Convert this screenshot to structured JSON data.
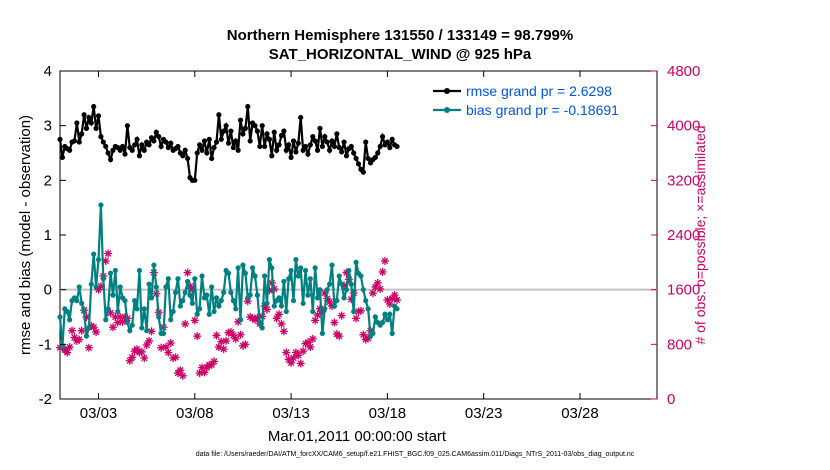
{
  "chart_data": {
    "type": "line",
    "title": "Northern Hemisphere 131550 / 133149 = 98.799%",
    "subtitle": "SAT_HORIZONTAL_WIND @ 925 hPa",
    "xlabel": "Mar.01,2011 00:00:00 start",
    "ylabel_left": "rmse and bias (model - observation)",
    "ylabel_right": "# of obs: o=possible; ×=assimilated",
    "ylim_left": [
      -2,
      4
    ],
    "ylim_right": [
      0,
      4800
    ],
    "x_tick_labels": [
      "03/03",
      "03/08",
      "03/13",
      "03/18",
      "03/23",
      "03/28"
    ],
    "x_tick_days": [
      3,
      8,
      13,
      18,
      23,
      28
    ],
    "xlim_days": [
      1,
      32
    ],
    "y_left_ticks": [
      "-2",
      "-1",
      "0",
      "1",
      "2",
      "3",
      "4"
    ],
    "y_right_ticks": [
      "0",
      "800",
      "1600",
      "2400",
      "3200",
      "4000",
      "4800"
    ],
    "footer": "data file: /Users/raeder/DAI/ATM_forcXX/CAM6_setup/f.e21.FHIST_BGC.f09_025.CAM6assim.011/Diags_NTrS_2011-03/obs_diag_output.nc",
    "legend": [
      {
        "label": "rmse grand pr = 2.6298",
        "color": "#000000"
      },
      {
        "label": "bias grand pr = -0.18691",
        "color": "#008080"
      }
    ],
    "series": [
      {
        "name": "rmse",
        "color": "#000000",
        "step_days": 0.125,
        "values": [
          2.75,
          2.42,
          2.62,
          2.58,
          2.55,
          2.7,
          2.72,
          3.05,
          2.7,
          2.85,
          3.2,
          2.95,
          3.15,
          3.05,
          3.35,
          2.95,
          3.18,
          2.8,
          2.7,
          2.62,
          2.5,
          2.38,
          2.55,
          2.62,
          2.6,
          2.55,
          2.62,
          2.48,
          3.0,
          2.6,
          2.55,
          2.65,
          2.75,
          2.45,
          2.65,
          2.55,
          2.7,
          2.65,
          2.78,
          2.72,
          2.88,
          2.8,
          2.62,
          2.75,
          2.7,
          2.6,
          2.68,
          2.55,
          2.58,
          2.62,
          2.5,
          2.45,
          2.55,
          2.4,
          2.05,
          2.0,
          2.0,
          2.5,
          2.65,
          2.55,
          2.72,
          2.5,
          2.75,
          2.4,
          2.6,
          2.7,
          3.2,
          2.75,
          2.9,
          3.0,
          2.68,
          2.9,
          2.6,
          2.72,
          2.55,
          3.1,
          2.85,
          2.95,
          3.35,
          2.72,
          3.05,
          3.0,
          2.9,
          2.62,
          3.0,
          2.62,
          2.85,
          2.75,
          2.45,
          2.88,
          2.55,
          2.65,
          2.82,
          2.9,
          2.55,
          2.65,
          2.42,
          2.72,
          2.52,
          2.68,
          3.15,
          2.55,
          2.62,
          2.48,
          2.65,
          2.8,
          2.72,
          2.55,
          2.95,
          2.62,
          2.8,
          2.7,
          2.55,
          2.72,
          2.62,
          2.85,
          2.6,
          2.52,
          2.7,
          2.45,
          2.58,
          2.62,
          2.5,
          2.4,
          2.3,
          2.2,
          2.15,
          2.7,
          2.4,
          2.32,
          2.38,
          2.42,
          2.5,
          2.62,
          2.8,
          2.65,
          2.7,
          2.6,
          2.75,
          2.65,
          2.62
        ]
      },
      {
        "name": "bias",
        "color": "#008080",
        "step_days": 0.125,
        "values": [
          -0.5,
          -1.05,
          -0.35,
          -0.4,
          -0.55,
          -0.2,
          -0.15,
          -0.2,
          0.05,
          -0.25,
          -0.4,
          -0.85,
          -0.7,
          0.1,
          0.65,
          0.05,
          0.55,
          1.55,
          0.2,
          -0.55,
          -0.35,
          0.3,
          -0.1,
          0.35,
          -0.4,
          0.05,
          -0.15,
          -0.2,
          -0.6,
          -0.75,
          -0.65,
          -0.2,
          -0.35,
          0.35,
          -0.7,
          -0.35,
          -0.75,
          0.1,
          -0.15,
          0.45,
          0.05,
          -0.5,
          -0.8,
          -0.8,
          0.05,
          0.2,
          -0.55,
          -0.4,
          -0.05,
          0.2,
          -0.3,
          -0.2,
          -0.05,
          0.15,
          -0.1,
          -0.25,
          0.2,
          -0.45,
          -0.35,
          0.25,
          -0.15,
          -0.1,
          -0.45,
          0.05,
          -0.4,
          -0.15,
          -0.3,
          -0.2,
          -0.05,
          0.35,
          0.3,
          -0.05,
          -0.2,
          -0.35,
          0.4,
          -0.55,
          0.45,
          0.3,
          -0.15,
          -0.1,
          0.4,
          0.25,
          -0.1,
          -0.6,
          -0.7,
          0.25,
          -0.25,
          0.55,
          0.4,
          -0.3,
          -0.2,
          -0.15,
          -0.3,
          0.15,
          -0.4,
          0.2,
          0.35,
          -0.2,
          0.55,
          0.25,
          0.4,
          -0.25,
          0.35,
          -0.1,
          0.2,
          -0.4,
          0.4,
          -0.15,
          0.0,
          -0.8,
          -0.35,
          0.0,
          0.1,
          0.45,
          -0.3,
          -0.2,
          0.25,
          0.1,
          -0.15,
          0.0,
          0.35,
          0.1,
          -0.4,
          0.5,
          0.3,
          0.25,
          0.0,
          -0.2,
          -0.35,
          -0.85,
          -0.8,
          -0.5,
          -0.6,
          -0.65,
          -0.6,
          -0.45,
          -0.55,
          -0.45,
          -0.8,
          -0.3,
          -0.35
        ]
      },
      {
        "name": "observations",
        "color": "#cc0066",
        "step_days": 0.125,
        "values": [
          750,
          760,
          720,
          680,
          760,
          1000,
          900,
          850,
          870,
          1000,
          1300,
          1200,
          750,
          1070,
          1050,
          980,
          1600,
          1650,
          1800,
          2020,
          2130,
          1260,
          1050,
          1200,
          1120,
          1200,
          1130,
          1200,
          1180,
          560,
          610,
          700,
          730,
          680,
          690,
          600,
          790,
          850,
          990,
          1850,
          1540,
          1270,
          750,
          1050,
          760,
          680,
          820,
          600,
          610,
          380,
          420,
          340,
          1100,
          1850,
          1650,
          1600,
          1150,
          920,
          380,
          460,
          390,
          460,
          500,
          500,
          550,
          930,
          760,
          840,
          730,
          850,
          970,
          980,
          930,
          880,
          1130,
          940,
          780,
          800,
          1430,
          1200,
          1180,
          1160,
          1190,
          1100,
          1210,
          1360,
          1310,
          1590,
          1700,
          1610,
          1180,
          1240,
          1100,
          990,
          680,
          580,
          530,
          600,
          680,
          640,
          520,
          700,
          810,
          830,
          760,
          880,
          1150,
          1230,
          1320,
          1280,
          1550,
          1470,
          1420,
          1360,
          1120,
          950,
          920,
          1220,
          1660,
          1850,
          1750,
          1460,
          1550,
          1180,
          1280,
          1290,
          940,
          870,
          890,
          1000,
          1550,
          1640,
          1700,
          1610,
          1860,
          2020,
          1450,
          1390,
          1470,
          1520,
          1450
        ]
      }
    ]
  }
}
